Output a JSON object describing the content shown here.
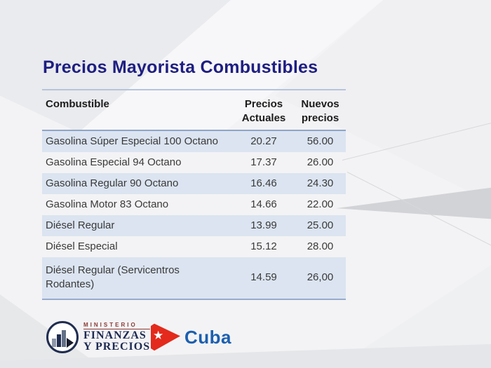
{
  "slide_title": "Precios Mayorista Combustibles",
  "colors": {
    "title_navy": "#1e1e82",
    "row_fill_blue": "#dbe4f0",
    "table_rule_blue": "#8fa5c9",
    "cuba_red": "#e32a1c",
    "cuba_blue": "#1b5fb0",
    "ministry_navy": "#1d2a52",
    "ministry_red": "#8a3a34"
  },
  "table": {
    "headers": {
      "fuel": "Combustible",
      "current": "Precios\nActuales",
      "new": "Nuevos\nprecios"
    },
    "rows": [
      {
        "name": "Gasolina Súper Especial 100 Octano",
        "current": "20.27",
        "new": "56.00"
      },
      {
        "name": "Gasolina Especial 94 Octano",
        "current": "17.37",
        "new": "26.00"
      },
      {
        "name": "Gasolina Regular 90 Octano",
        "current": "16.46",
        "new": "24.30"
      },
      {
        "name": "Gasolina Motor 83 Octano",
        "current": "14.66",
        "new": "22.00"
      },
      {
        "name": "Diésel Regular",
        "current": "13.99",
        "new": "25.00"
      },
      {
        "name": "Diésel Especial",
        "current": "15.12",
        "new": "28.00"
      },
      {
        "name": "Diésel Regular (Servicentros Rodantes)",
        "current": "14.59",
        "new": "26,00"
      }
    ]
  },
  "footer": {
    "ministry_logo": {
      "line1": "MINISTERIO",
      "line2": "FINANZAS",
      "line3": "Y PRECIOS"
    },
    "cuba_logo": {
      "label": "Cuba",
      "star": "★"
    }
  }
}
